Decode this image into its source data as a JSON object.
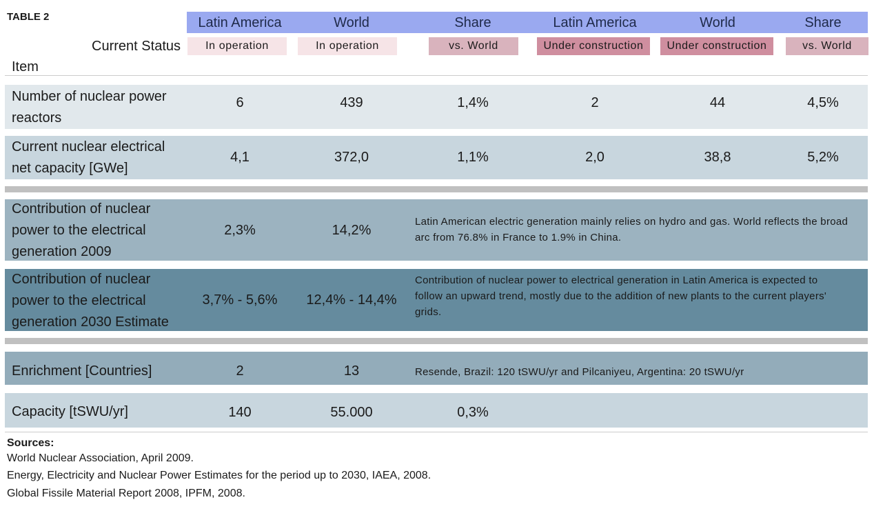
{
  "table": {
    "label": "TABLE 2",
    "headers": [
      "Latin America",
      "World",
      "Share",
      "Latin America",
      "World",
      "Share"
    ],
    "status_label": "Current Status",
    "status": [
      "In operation",
      "In operation",
      "vs. World",
      "Under construction",
      "Under construction",
      "vs. World"
    ],
    "item_label": "Item",
    "rows": [
      {
        "label": [
          "Number of nuclear power",
          "reactors"
        ],
        "values": [
          "6",
          "439",
          "1,4%",
          "2",
          "44",
          "4,5%"
        ]
      },
      {
        "label": [
          "Current nuclear electrical",
          "net capacity [GWe]"
        ],
        "values": [
          "4,1",
          "372,0",
          "1,1%",
          "2,0",
          "38,8",
          "5,2%"
        ]
      },
      {
        "label": [
          "Contribution of nuclear",
          "power to the electrical",
          "generation 2009"
        ],
        "values": [
          "2,3%",
          "14,2%"
        ],
        "note": [
          "Latin American electric generation mainly relies on hydro and gas. World reflects the broad",
          "arc from 76.8% in France to 1.9% in China."
        ]
      },
      {
        "label": [
          "Contribution of nuclear",
          "power to the electrical",
          "generation 2030 Estimate"
        ],
        "values": [
          "3,7%  - 5,6%",
          "12,4% - 14,4%"
        ],
        "note": [
          "Contribution of nuclear power to electrical generation in Latin America is expected to",
          "follow an upward trend, mostly due to the addition of new plants to the current players'",
          "grids."
        ]
      },
      {
        "label": [
          "Enrichment [Countries]"
        ],
        "values": [
          "2",
          "13"
        ],
        "note": [
          "Resende, Brazil: 120 tSWU/yr  and Pilcaniyeu, Argentina: 20 tSWU/yr"
        ]
      },
      {
        "label": [
          "Capacity [tSWU/yr]"
        ],
        "values": [
          "140",
          "55.000",
          "0,3%"
        ]
      }
    ]
  },
  "sources": {
    "title": "Sources:",
    "items": [
      "World Nuclear Association, April 2009.",
      "Energy, Electricity and Nuclear Power Estimates for the period up to 2030, IAEA, 2008.",
      "Global Fissile Material Report 2008, IPFM, 2008."
    ]
  },
  "colors": {
    "header_band": "#9aa9f0",
    "pill_in_operation": "#f6e4e7",
    "pill_vs_world": "#d9b3bd",
    "pill_under_construction": "#cf8e9f",
    "row_light": "#e1e8ec",
    "row_mid": "#c8d6de",
    "row_contrib_2009": "#9cb3c0",
    "row_contrib_2030": "#658b9e",
    "row_enrichment": "#93acba",
    "separator": "#c0c0c0"
  }
}
